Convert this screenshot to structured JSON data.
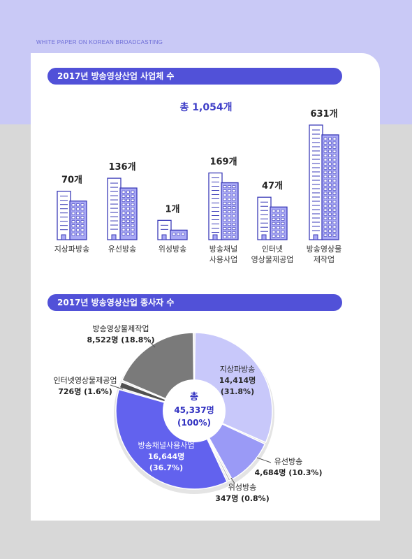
{
  "header": {
    "text": "WHITE PAPER ON KOREAN BROADCASTING"
  },
  "section1": {
    "title": "2017년 방송영상산업 사업체 수",
    "total": "총 1,054개"
  },
  "section2": {
    "title": "2017년 방송영상산업 종사자 수"
  },
  "colors": {
    "accent": "#5151d8",
    "building_light": "#ffffff",
    "building_fill": "#a9a9f5",
    "outline": "#3b3bb8"
  },
  "chart_data": [
    {
      "type": "bar",
      "title": "2017년 방송영상산업 사업체 수",
      "categories": [
        "지상파방송",
        "유선방송",
        "위성방송",
        "방송채널 사용사업",
        "인터넷 영상물제공업",
        "방송영상물 제작업"
      ],
      "category_lines": [
        [
          "지상파방송"
        ],
        [
          "유선방송"
        ],
        [
          "위성방송"
        ],
        [
          "방송채널",
          "사용사업"
        ],
        [
          "인터넷",
          "영상물제공업"
        ],
        [
          "방송영상물",
          "제작업"
        ]
      ],
      "values": [
        70,
        136,
        1,
        169,
        47,
        631
      ],
      "value_labels": [
        "70개",
        "136개",
        "1개",
        "169개",
        "47개",
        "631개"
      ],
      "total_label": "총 1,054개"
    },
    {
      "type": "pie",
      "title": "2017년 방송영상산업 종사자 수",
      "center_label": [
        "총",
        "45,337명",
        "(100%)"
      ],
      "slices": [
        {
          "name": "지상파방송",
          "value": 14414,
          "value_label": "14,414명",
          "pct_label": "(31.8%)",
          "color": "#c8c8fa"
        },
        {
          "name": "유선방송",
          "value": 4684,
          "value_label": "4,684명 (10.3%)",
          "pct_label": "",
          "color": "#9a9af6"
        },
        {
          "name": "위성방송",
          "value": 347,
          "value_label": "347명 (0.8%)",
          "pct_label": "",
          "color": "#b0b0b0"
        },
        {
          "name": "방송채널사용사업",
          "value": 16644,
          "value_label": "16,644명",
          "pct_label": "(36.7%)",
          "color": "#6262ee"
        },
        {
          "name": "인터넷영상물제공업",
          "value": 726,
          "value_label": "726명 (1.6%)",
          "pct_label": "",
          "color": "#505050"
        },
        {
          "name": "방송영상물제작업",
          "value": 8522,
          "value_label": "8,522명 (18.8%)",
          "pct_label": "",
          "color": "#7a7a7a"
        }
      ]
    }
  ]
}
